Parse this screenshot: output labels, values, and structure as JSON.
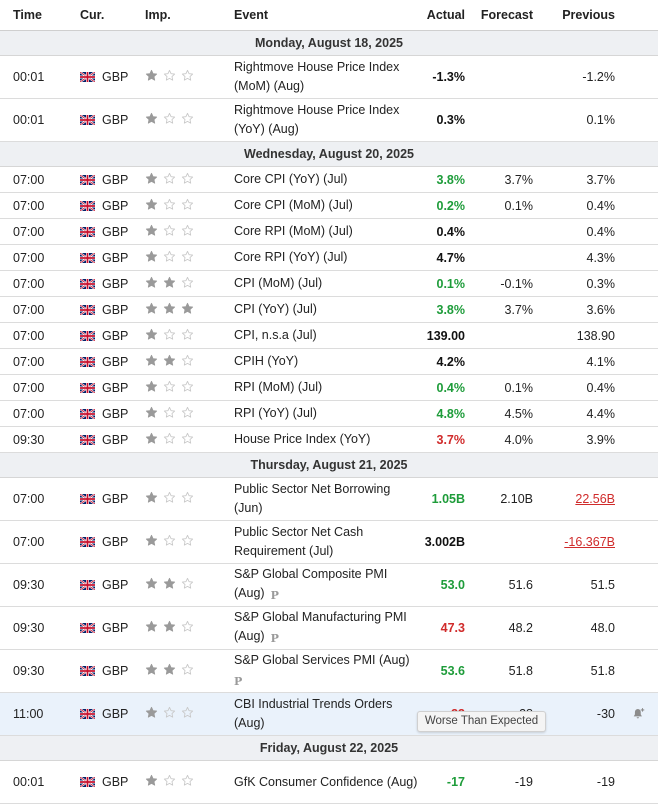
{
  "header": {
    "time": "Time",
    "currency": "Cur.",
    "importance": "Imp.",
    "event": "Event",
    "actual": "Actual",
    "forecast": "Forecast",
    "previous": "Previous"
  },
  "colors": {
    "positive": "#1e9c3a",
    "negative": "#d02b2b",
    "star_on": "#9a9a9a",
    "star_off": "#c8c8c8",
    "date_bg": "#eef0f3",
    "highlight_bg": "#eaf2fb"
  },
  "groups": [
    {
      "date": "Monday, August 18, 2025",
      "events": [
        {
          "time": "00:01",
          "cur": "GBP",
          "imp": 1,
          "event": "Rightmove House Price Index (MoM) (Aug)",
          "actual": "-1.3%",
          "actual_color": "black",
          "forecast": "",
          "previous": "-1.2%",
          "tall": true
        },
        {
          "time": "00:01",
          "cur": "GBP",
          "imp": 1,
          "event": "Rightmove House Price Index (YoY) (Aug)",
          "actual": "0.3%",
          "actual_color": "black",
          "forecast": "",
          "previous": "0.1%",
          "tall": true
        }
      ]
    },
    {
      "date": "Wednesday, August 20, 2025",
      "events": [
        {
          "time": "07:00",
          "cur": "GBP",
          "imp": 1,
          "event": "Core CPI (YoY) (Jul)",
          "actual": "3.8%",
          "actual_color": "green",
          "forecast": "3.7%",
          "previous": "3.7%"
        },
        {
          "time": "07:00",
          "cur": "GBP",
          "imp": 1,
          "event": "Core CPI (MoM) (Jul)",
          "actual": "0.2%",
          "actual_color": "green",
          "forecast": "0.1%",
          "previous": "0.4%"
        },
        {
          "time": "07:00",
          "cur": "GBP",
          "imp": 1,
          "event": "Core RPI (MoM) (Jul)",
          "actual": "0.4%",
          "actual_color": "black",
          "forecast": "",
          "previous": "0.4%"
        },
        {
          "time": "07:00",
          "cur": "GBP",
          "imp": 1,
          "event": "Core RPI (YoY) (Jul)",
          "actual": "4.7%",
          "actual_color": "black",
          "forecast": "",
          "previous": "4.3%"
        },
        {
          "time": "07:00",
          "cur": "GBP",
          "imp": 2,
          "event": "CPI (MoM) (Jul)",
          "actual": "0.1%",
          "actual_color": "green",
          "forecast": "-0.1%",
          "previous": "0.3%"
        },
        {
          "time": "07:00",
          "cur": "GBP",
          "imp": 3,
          "event": "CPI (YoY) (Jul)",
          "actual": "3.8%",
          "actual_color": "green",
          "forecast": "3.7%",
          "previous": "3.6%"
        },
        {
          "time": "07:00",
          "cur": "GBP",
          "imp": 1,
          "event": "CPI, n.s.a (Jul)",
          "actual": "139.00",
          "actual_color": "black",
          "forecast": "",
          "previous": "138.90"
        },
        {
          "time": "07:00",
          "cur": "GBP",
          "imp": 2,
          "event": "CPIH (YoY)",
          "actual": "4.2%",
          "actual_color": "black",
          "forecast": "",
          "previous": "4.1%"
        },
        {
          "time": "07:00",
          "cur": "GBP",
          "imp": 1,
          "event": "RPI (MoM) (Jul)",
          "actual": "0.4%",
          "actual_color": "green",
          "forecast": "0.1%",
          "previous": "0.4%"
        },
        {
          "time": "07:00",
          "cur": "GBP",
          "imp": 1,
          "event": "RPI (YoY) (Jul)",
          "actual": "4.8%",
          "actual_color": "green",
          "forecast": "4.5%",
          "previous": "4.4%"
        },
        {
          "time": "09:30",
          "cur": "GBP",
          "imp": 1,
          "event": "House Price Index (YoY)",
          "actual": "3.7%",
          "actual_color": "red",
          "forecast": "4.0%",
          "previous": "3.9%"
        }
      ]
    },
    {
      "date": "Thursday, August 21, 2025",
      "events": [
        {
          "time": "07:00",
          "cur": "GBP",
          "imp": 1,
          "event": "Public Sector Net Borrowing (Jun)",
          "actual": "1.05B",
          "actual_color": "green",
          "forecast": "2.10B",
          "previous": "22.56B",
          "previous_color": "red",
          "tall": true
        },
        {
          "time": "07:00",
          "cur": "GBP",
          "imp": 1,
          "event": "Public Sector Net Cash Requirement (Jul)",
          "actual": "3.002B",
          "actual_color": "black",
          "forecast": "",
          "previous": "-16.367B",
          "previous_color": "red",
          "tall": true
        },
        {
          "time": "09:30",
          "cur": "GBP",
          "imp": 2,
          "event": "S&P Global Composite PMI (Aug)",
          "actual": "53.0",
          "actual_color": "green",
          "forecast": "51.6",
          "previous": "51.5",
          "badge": "P",
          "tall": true
        },
        {
          "time": "09:30",
          "cur": "GBP",
          "imp": 2,
          "event": "S&P Global Manufacturing PMI (Aug)",
          "actual": "47.3",
          "actual_color": "red",
          "forecast": "48.2",
          "previous": "48.0",
          "badge": "P",
          "tall": true
        },
        {
          "time": "09:30",
          "cur": "GBP",
          "imp": 2,
          "event": "S&P Global Services PMI (Aug)",
          "actual": "53.6",
          "actual_color": "green",
          "forecast": "51.8",
          "previous": "51.8",
          "badge": "P",
          "badge_newline": true,
          "tall": true
        },
        {
          "time": "11:00",
          "cur": "GBP",
          "imp": 1,
          "event": "CBI Industrial Trends Orders (Aug)",
          "actual": "-33",
          "actual_color": "red",
          "forecast": "-28",
          "previous": "-30",
          "tall": true,
          "highlight": true,
          "bell": true
        }
      ]
    },
    {
      "date": "Friday, August 22, 2025",
      "events": [
        {
          "time": "00:01",
          "cur": "GBP",
          "imp": 1,
          "event": "GfK Consumer Confidence (Aug)",
          "actual": "-17",
          "actual_color": "green",
          "forecast": "-19",
          "previous": "-19",
          "tall": true
        }
      ]
    }
  ],
  "tooltip": {
    "text": "Worse Than Expected"
  }
}
